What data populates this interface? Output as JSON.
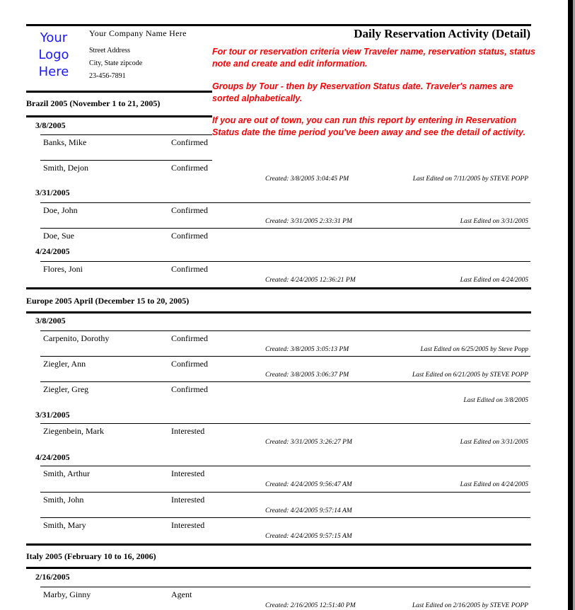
{
  "header": {
    "logo_text": [
      "Your",
      "Logo",
      "Here"
    ],
    "company_name": "Your Company Name Here",
    "street": "Street Address",
    "city": "City, State  zipcode",
    "phone": "23-456-7891",
    "title": "Daily Reservation Activity (Detail)",
    "notes": [
      "For tour or reservation criteria view Traveler name, reservation status, status note and create and edit information.",
      "Groups by Tour - then by Reservation Status date. Traveler's names are sorted alphabetically.",
      "If you are out of town, you can run this report by entering in Reservation Status date the time period you've been away and see the detail of activity."
    ]
  },
  "colors": {
    "logo": "#1a1aff",
    "notes": "#ff0000"
  },
  "tours": [
    {
      "name": "Brazil 2005 (November 1 to 21, 2005)",
      "dates": [
        {
          "date": "3/8/2005",
          "rows": [
            {
              "name": "Banks, Mike",
              "status": "Confirmed",
              "created": "",
              "edited": ""
            },
            {
              "name": "Smith, Dejon",
              "status": "Confirmed",
              "created": "Created:  3/8/2005 3:04:45 PM",
              "edited": "Last Edited on 7/11/2005 by STEVE POPP"
            }
          ]
        },
        {
          "date": "3/31/2005",
          "rows": [
            {
              "name": "Doe, John",
              "status": "Confirmed",
              "created": "Created:  3/31/2005 2:33:31 PM",
              "edited": "Last Edited on 3/31/2005"
            },
            {
              "name": "Doe, Sue",
              "status": "Confirmed",
              "created": "",
              "edited": ""
            }
          ]
        },
        {
          "date": "4/24/2005",
          "rows": [
            {
              "name": "Flores, Joni",
              "status": "Confirmed",
              "created": "Created:  4/24/2005 12:36:21 PM",
              "edited": "Last Edited on 4/24/2005"
            }
          ]
        }
      ]
    },
    {
      "name": "Europe 2005 April (December 15 to 20, 2005)",
      "dates": [
        {
          "date": "3/8/2005",
          "rows": [
            {
              "name": "Carpenito, Dorothy",
              "status": "Confirmed",
              "created": "Created:  3/8/2005 3:05:13 PM",
              "edited": "Last Edited on 6/25/2005 by Steve Popp"
            },
            {
              "name": "Ziegler, Ann",
              "status": "Confirmed",
              "created": "Created:  3/8/2005 3:06:37 PM",
              "edited": "Last Edited on 6/21/2005 by STEVE POPP"
            },
            {
              "name": "Ziegler, Greg",
              "status": "Confirmed",
              "created": "",
              "edited": "Last Edited on 3/8/2005"
            }
          ]
        },
        {
          "date": "3/31/2005",
          "rows": [
            {
              "name": "Ziegenbein, Mark",
              "status": "Interested",
              "created": "Created:  3/31/2005 3:26:27 PM",
              "edited": "Last Edited on 3/31/2005"
            }
          ]
        },
        {
          "date": "4/24/2005",
          "rows": [
            {
              "name": "Smith, Arthur",
              "status": "Interested",
              "created": "Created:  4/24/2005 9:56:47 AM",
              "edited": "Last Edited on 4/24/2005"
            },
            {
              "name": "Smith, John",
              "status": "Interested",
              "created": "Created:  4/24/2005 9:57:14 AM",
              "edited": ""
            },
            {
              "name": "Smith, Mary",
              "status": "Interested",
              "created": "Created:  4/24/2005 9:57:15 AM",
              "edited": ""
            }
          ]
        }
      ]
    },
    {
      "name": "Italy 2005 (February 10 to 16, 2006)",
      "dates": [
        {
          "date": "2/16/2005",
          "rows": [
            {
              "name": "Marby, Ginny",
              "status": "Agent",
              "created": "Created:  2/16/2005 12:51:40 PM",
              "edited": "Last Edited on 2/16/2005 by STEVE POPP"
            }
          ]
        }
      ]
    }
  ]
}
